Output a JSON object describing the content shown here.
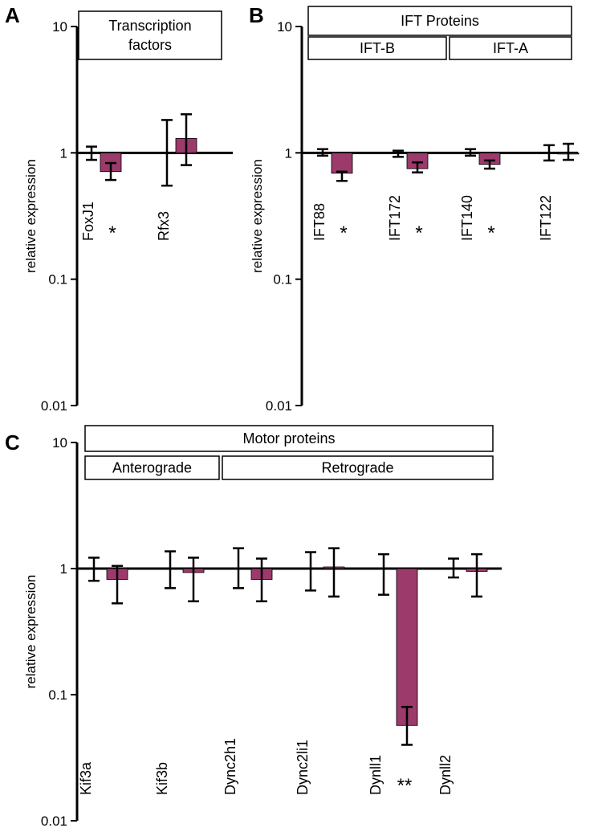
{
  "chart_data": [
    {
      "panel": "A",
      "type": "bar",
      "scale": "log",
      "ylabel": "relative expression",
      "ylim": [
        0.01,
        10
      ],
      "yticks": [
        "10",
        "1",
        "0.1",
        "0.01"
      ],
      "baseline": 1,
      "header_rows": [
        [
          {
            "label": "Transcription factors",
            "span": [
              0,
              1
            ]
          }
        ]
      ],
      "categories": [
        "FoxJ1",
        "Rfx3"
      ],
      "significance": [
        "*",
        ""
      ],
      "series": [
        {
          "color": "#9b3a6b",
          "values": [
            1.0,
            1.0
          ],
          "err_low": [
            0.88,
            0.55
          ],
          "err_high": [
            1.12,
            1.82
          ]
        },
        {
          "color": "#9b3a6b",
          "values": [
            0.71,
            1.3
          ],
          "err_low": [
            0.61,
            0.8
          ],
          "err_high": [
            0.83,
            2.02
          ]
        }
      ]
    },
    {
      "panel": "B",
      "type": "bar",
      "scale": "log",
      "ylabel": "relative expression",
      "ylim": [
        0.01,
        10
      ],
      "yticks": [
        "10",
        "1",
        "0.1",
        "0.01"
      ],
      "baseline": 1,
      "header_rows": [
        [
          {
            "label": "IFT Proteins",
            "span": [
              0,
              3
            ]
          }
        ],
        [
          {
            "label": "IFT-B",
            "span": [
              0,
              1
            ]
          },
          {
            "label": "IFT-A",
            "span": [
              2,
              3
            ]
          }
        ]
      ],
      "categories": [
        "IFT88",
        "IFT172",
        "IFT140",
        "IFT122"
      ],
      "significance": [
        "*",
        "*",
        "*",
        ""
      ],
      "series": [
        {
          "color": "#9b3a6b",
          "values": [
            1.0,
            1.0,
            1.0,
            1.0
          ],
          "err_low": [
            0.95,
            0.93,
            0.95,
            0.87
          ],
          "err_high": [
            1.07,
            1.04,
            1.07,
            1.15
          ]
        },
        {
          "color": "#9b3a6b",
          "values": [
            0.69,
            0.75,
            0.81,
            1.0
          ],
          "err_low": [
            0.6,
            0.7,
            0.75,
            0.88
          ],
          "err_high": [
            0.71,
            0.84,
            0.87,
            1.18
          ]
        }
      ]
    },
    {
      "panel": "C",
      "type": "bar",
      "scale": "log",
      "ylabel": "relative expression",
      "ylim": [
        0.01,
        10
      ],
      "yticks": [
        "10",
        "1",
        "0.1",
        "0.01"
      ],
      "baseline": 1,
      "header_rows": [
        [
          {
            "label": "Motor proteins",
            "span": [
              0,
              5
            ]
          }
        ],
        [
          {
            "label": "Anterograde",
            "span": [
              0,
              1
            ]
          },
          {
            "label": "Retrograde",
            "span": [
              2,
              5
            ]
          }
        ]
      ],
      "categories": [
        "Kif3a",
        "Kif3b",
        "Dync2h1",
        "Dync2li1",
        "Dynll1",
        "Dynll2"
      ],
      "significance": [
        "",
        "",
        "",
        "",
        "**",
        ""
      ],
      "series": [
        {
          "color": "#9b3a6b",
          "values": [
            1.0,
            1.0,
            1.0,
            1.0,
            1.0,
            1.0
          ],
          "err_low": [
            0.8,
            0.7,
            0.7,
            0.67,
            0.62,
            0.85
          ],
          "err_high": [
            1.22,
            1.37,
            1.45,
            1.35,
            1.3,
            1.2
          ]
        },
        {
          "color": "#9b3a6b",
          "values": [
            0.82,
            0.93,
            0.82,
            1.03,
            0.057,
            0.95
          ],
          "err_low": [
            0.53,
            0.55,
            0.55,
            0.6,
            0.04,
            0.6
          ],
          "err_high": [
            1.05,
            1.22,
            1.2,
            1.45,
            0.08,
            1.3
          ]
        }
      ]
    }
  ]
}
